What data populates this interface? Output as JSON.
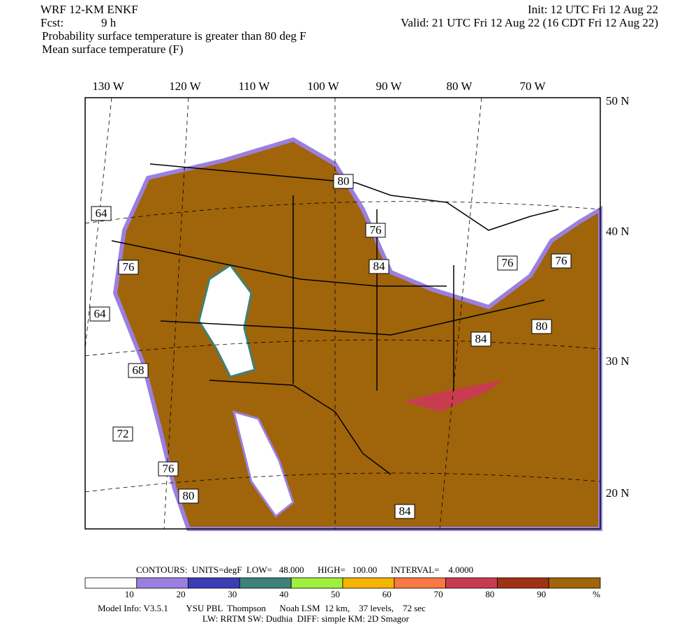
{
  "header": {
    "model": "WRF 12-KM ENKF",
    "init": "Init: 12 UTC Fri 12 Aug 22",
    "fcst_label": "Fcst:",
    "fcst": "9 h",
    "valid": "Valid: 21 UTC Fri 12 Aug 22 (16 CDT Fri 12 Aug 22)",
    "line3": "Probability surface temperature is greater than 80 deg F",
    "line4": "Mean surface temperature (F)"
  },
  "map": {
    "lon_labels": [
      "130 W",
      "120 W",
      "110 W",
      "100 W",
      "90 W",
      "80 W",
      "70 W"
    ],
    "lat_labels": [
      "50 N",
      "40 N",
      "30 N",
      "20 N"
    ],
    "contour_labels": [
      "64",
      "76",
      "64",
      "68",
      "72",
      "76",
      "80",
      "84",
      "80",
      "84",
      "76",
      "76",
      "84",
      "76",
      "80"
    ]
  },
  "colorbar": {
    "colors": [
      "#ffffff",
      "#9b7fe0",
      "#3c3cb4",
      "#3c8278",
      "#9ef03c",
      "#f5b400",
      "#fa7846",
      "#c83c50",
      "#a03214",
      "#a0640a"
    ],
    "ticks": [
      10,
      20,
      30,
      40,
      50,
      60,
      70,
      80,
      90
    ],
    "unit": "%",
    "contours": "CONTOURS:  UNITS=degF  LOW=   48.000      HIGH=   100.00      INTERVAL=    4.0000"
  },
  "footer": {
    "line1": "Model Info: V3.5.1        YSU PBL  Thompson      Noah LSM  12 km,    37 levels,    72 sec",
    "line2": "LW: RRTM SW: Dudhia  DIFF: simple KM: 2D Smagor"
  }
}
